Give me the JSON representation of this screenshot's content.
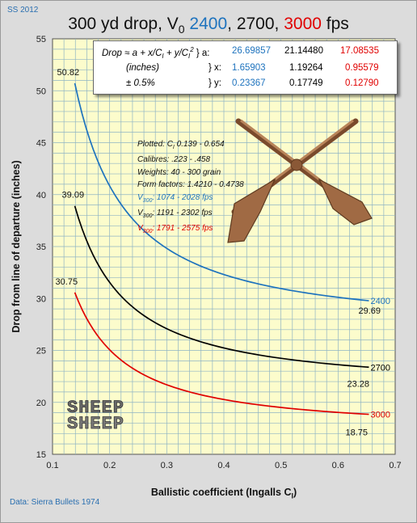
{
  "corner_tag": "SS 2012",
  "source_note": "Data:  Sierra Bullets 1974",
  "title": {
    "prefix": "300 yd drop, V",
    "subscript": "0",
    "v1": "2400",
    "sep1": ",",
    "v2": "2700",
    "sep2": ",",
    "v3": "3000",
    "suffix": "fps"
  },
  "x_axis": {
    "label": "Ballistic coefficient (Ingalls  C",
    "label_subscript": "I",
    "label_close": ")"
  },
  "y_axis": {
    "label": "Drop from line of departure (inches)"
  },
  "formula_box": {
    "row1_lead": "Drop ≈ a + x/C",
    "row1_sub1": "I",
    "row1_mid": " + y/C",
    "row1_sub2": "I",
    "row1_sup": "2",
    "row1_tail": " } a:",
    "row2_lead": "(inches)",
    "row2_tail": "} x:",
    "row3_lead": "± 0.5%",
    "row3_tail": "} y:",
    "a": [
      "26.69857",
      "21.14480",
      "17.08535"
    ],
    "x": [
      "1.65903",
      "1.19264",
      "0.95579"
    ],
    "y": [
      "0.23367",
      "0.17749",
      "0.12790"
    ]
  },
  "notes": {
    "plotted_lead": "Plotted:  C",
    "plotted_sub": "I",
    "plotted_tail": " 0.139 - 0.654",
    "calibres": "Calibres: .223 - .458",
    "weights": "Weights: 40 - 300 grain",
    "form_factors": "Form factors: 1.4210 - 0.4738",
    "v_lead": "V",
    "v_sub": "300",
    "v1_range": ":  1074 - 2028",
    "v2_range": ":  1191 - 2302",
    "v3_range": ":  1791 - 2575",
    "unit": " fps"
  },
  "colors": {
    "blue": "#1e73be",
    "black": "#000000",
    "red": "#e00000"
  },
  "logo_text": "SHEEP",
  "chart_data": {
    "type": "line",
    "x_range": [
      0.1,
      0.7
    ],
    "y_range": [
      15,
      55
    ],
    "x_ticks": [
      "0.1",
      "0.2",
      "0.3",
      "0.4",
      "0.5",
      "0.6",
      "0.7"
    ],
    "y_ticks": [
      "15",
      "20",
      "25",
      "30",
      "35",
      "40",
      "45",
      "50",
      "55"
    ],
    "grid": true,
    "series": [
      {
        "name": "2400",
        "color": "#1e73be",
        "a": 26.69857,
        "x": 1.65903,
        "y": 0.23367,
        "c_start": 0.139,
        "c_end": 0.654,
        "start_label": "50.82",
        "end_label": "29.69"
      },
      {
        "name": "2700",
        "color": "#000000",
        "a": 21.1448,
        "x": 1.19264,
        "y": 0.17749,
        "c_start": 0.139,
        "c_end": 0.654,
        "start_label": "39.09",
        "end_label": "23.28"
      },
      {
        "name": "3000",
        "color": "#e00000",
        "a": 17.08535,
        "x": 0.95579,
        "y": 0.1279,
        "c_start": 0.139,
        "c_end": 0.654,
        "start_label": "30.75",
        "end_label": "18.75"
      }
    ]
  }
}
